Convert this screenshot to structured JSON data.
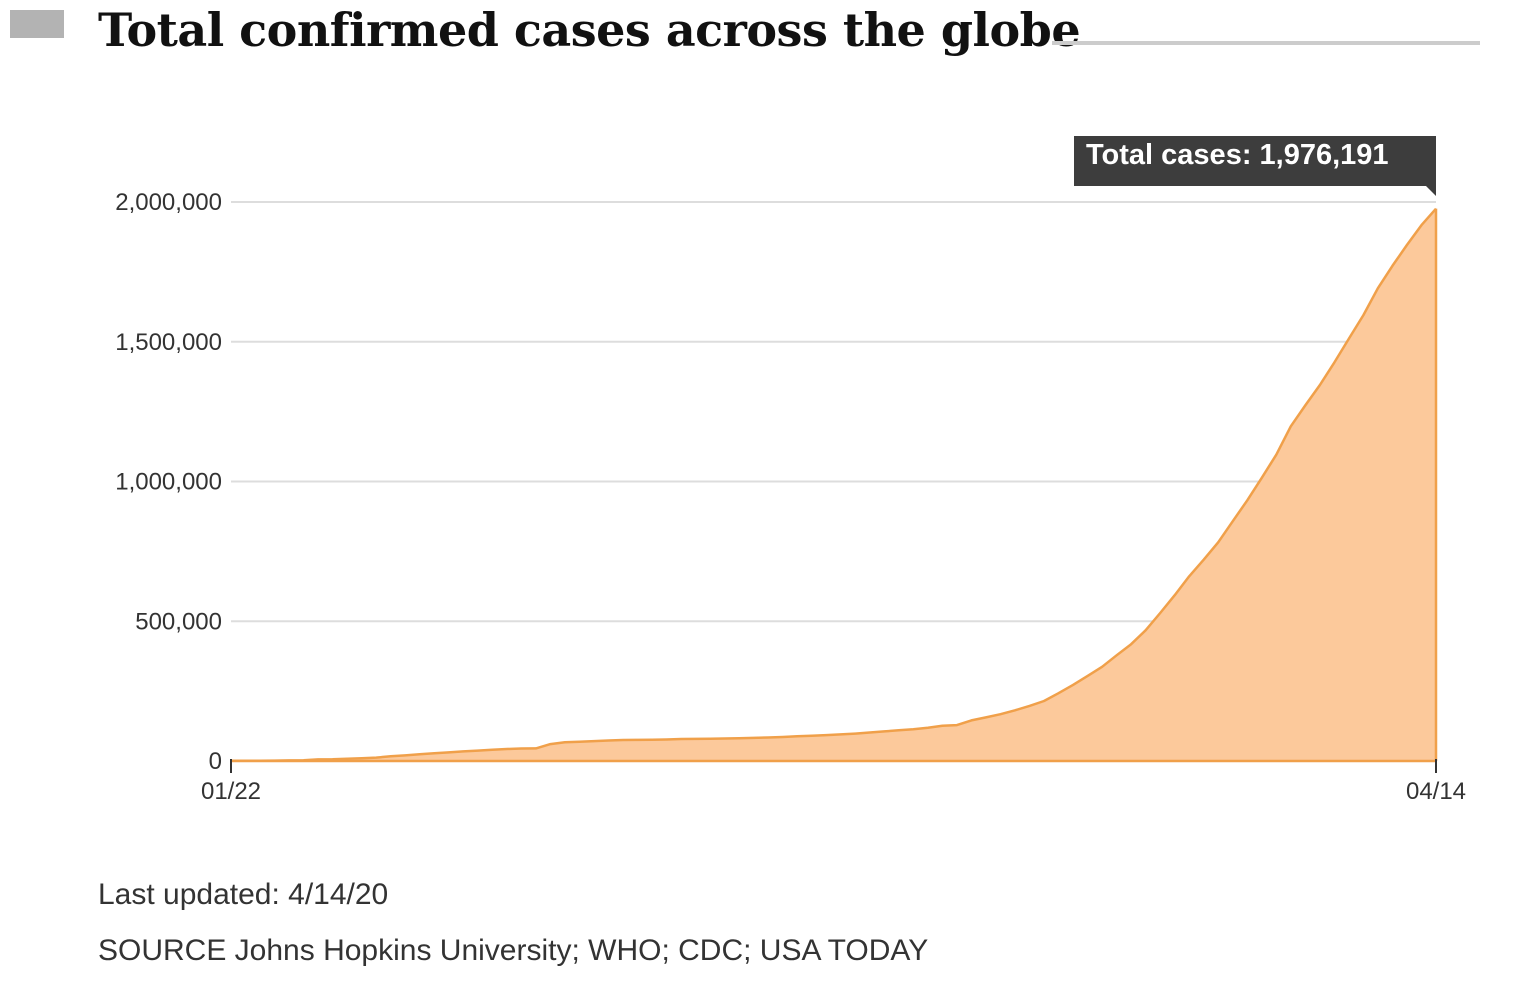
{
  "header": {
    "title": "Total confirmed cases across the globe"
  },
  "chart_data": {
    "type": "area",
    "title": "Total confirmed cases across the globe",
    "xlabel": "",
    "ylabel": "",
    "x_start": "01/22",
    "x_end": "04/14",
    "ylim": [
      0,
      2000000
    ],
    "y_ticks": [
      {
        "value": 0,
        "label": "0"
      },
      {
        "value": 500000,
        "label": "500,000"
      },
      {
        "value": 1000000,
        "label": "1,000,000"
      },
      {
        "value": 1500000,
        "label": "1,500,000"
      },
      {
        "value": 2000000,
        "label": "2,000,000"
      }
    ],
    "x_ticks": [
      {
        "index": 0,
        "label": "01/22"
      },
      {
        "index": 83,
        "label": "04/14"
      }
    ],
    "grid": true,
    "colors": {
      "fill": "#fcc99b",
      "line": "#f0a04a",
      "grid": "#dddddd",
      "tooltip_bg": "#3d3d3d"
    },
    "tooltip": {
      "label": "Total cases: 1,976,191",
      "value": 1976191
    },
    "series": [
      {
        "values": [
          555,
          654,
          941,
          1434,
          2118,
          2927,
          5578,
          6166,
          8234,
          9927,
          12038,
          16787,
          19881,
          23892,
          27635,
          30794,
          34391,
          37120,
          40150,
          42762,
          44802,
          45221,
          60368,
          66885,
          69030,
          71224,
          73258,
          75136,
          75639,
          76197,
          76819,
          78572,
          78958,
          79561,
          80406,
          81388,
          82746,
          84112,
          86011,
          88369,
          90306,
          92840,
          95120,
          97886,
          101801,
          105847,
          109821,
          113590,
          118620,
          125875,
          128352,
          145205,
          156101,
          167454,
          181574,
          197102,
          214821,
          242570,
          272208,
          304507,
          336953,
          378235,
          418045,
          467653,
          529591,
          593291,
          660693,
          720140,
          782389,
          857487,
          932605,
          1013157,
          1095917,
          1197405,
          1272115,
          1345101,
          1426096,
          1511104,
          1595350,
          1691719,
          1771514,
          1846679,
          1917320,
          1976191
        ]
      }
    ]
  },
  "footer": {
    "last_updated": "Last updated: 4/14/20",
    "source": "SOURCE Johns Hopkins University; WHO; CDC; USA TODAY"
  }
}
